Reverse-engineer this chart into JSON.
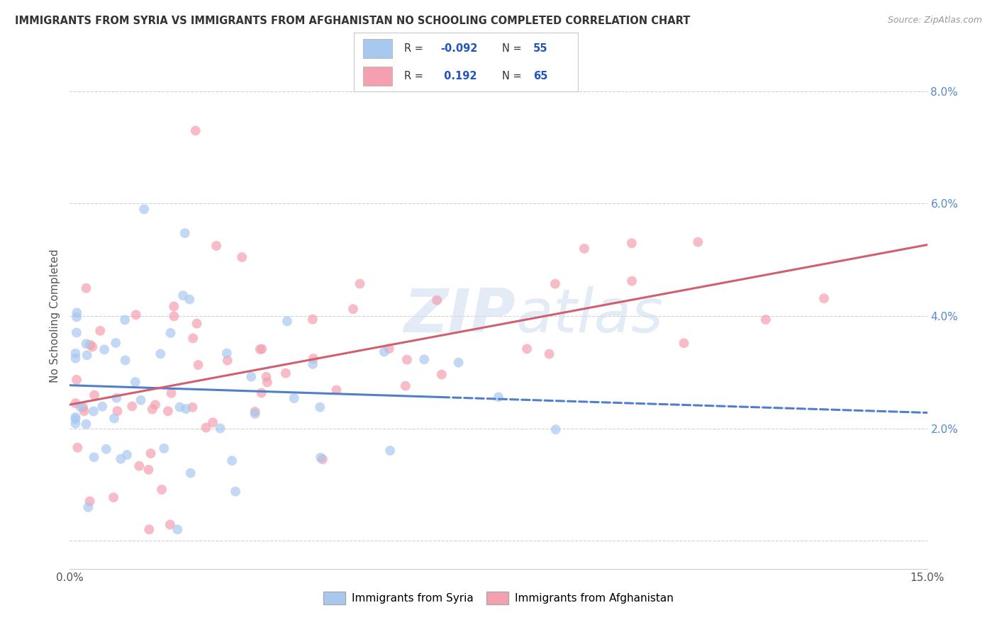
{
  "title": "IMMIGRANTS FROM SYRIA VS IMMIGRANTS FROM AFGHANISTAN NO SCHOOLING COMPLETED CORRELATION CHART",
  "source": "Source: ZipAtlas.com",
  "ylabel": "No Schooling Completed",
  "xlim": [
    0.0,
    0.15
  ],
  "ylim": [
    -0.005,
    0.085
  ],
  "yticks": [
    0.0,
    0.02,
    0.04,
    0.06,
    0.08
  ],
  "xtick_positions": [
    0.0,
    0.015,
    0.03,
    0.045,
    0.06,
    0.075,
    0.09,
    0.105,
    0.12,
    0.135,
    0.15
  ],
  "legend_R_syria": "-0.092",
  "legend_N_syria": "55",
  "legend_R_afghan": "0.192",
  "legend_N_afghan": "65",
  "color_syria": "#a8c8f0",
  "color_afghanistan": "#f4a0b0",
  "color_syria_line": "#5080c8",
  "color_afghanistan_line": "#d06070",
  "watermark_zip": "ZIP",
  "watermark_atlas": "atlas",
  "background_color": "#ffffff",
  "grid_color": "#cccccc",
  "title_fontsize": 10.5,
  "source_fontsize": 9,
  "tick_fontsize": 11,
  "ylabel_fontsize": 11,
  "right_tick_color": "#5588cc"
}
